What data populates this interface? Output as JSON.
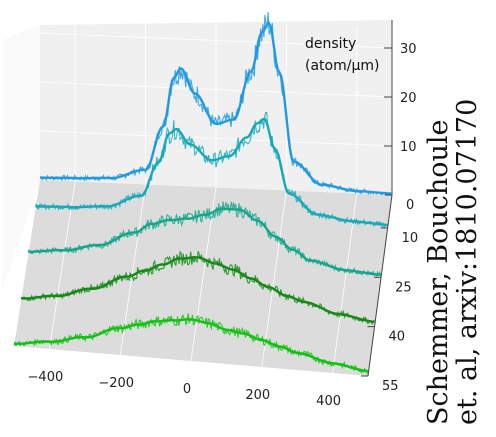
{
  "chart_data": {
    "type": "line",
    "title": "",
    "zlabel_line1": "density",
    "zlabel_line2": "(atom/μm)",
    "x_ticks": [
      -400,
      -200,
      0,
      200,
      400
    ],
    "time_ticks": [
      0,
      10,
      25,
      40,
      55
    ],
    "density_ticks": [
      10,
      20,
      30
    ],
    "x_range": [
      -500,
      500
    ],
    "density_range": [
      0,
      35
    ],
    "series": [
      {
        "t": 0,
        "color": "#1f9ae0",
        "x": [
          -500,
          -400,
          -300,
          -200,
          -150,
          -120,
          -100,
          -60,
          0,
          50,
          100,
          130,
          150,
          180,
          220,
          300,
          400,
          500
        ],
        "y": [
          0.5,
          0.7,
          1,
          3,
          12,
          22,
          24,
          19,
          13,
          14,
          24,
          32,
          34,
          24,
          6,
          1.5,
          0.5,
          0.3
        ]
      },
      {
        "t": 10,
        "color": "#16a9b8",
        "x": [
          -500,
          -400,
          -300,
          -200,
          -150,
          -120,
          -100,
          -60,
          0,
          50,
          100,
          130,
          150,
          180,
          220,
          300,
          400,
          500
        ],
        "y": [
          0.8,
          1,
          1.5,
          4,
          11,
          17,
          18,
          15,
          12,
          13,
          17,
          20,
          21,
          15,
          6,
          2,
          1,
          0.6
        ]
      },
      {
        "t": 25,
        "color": "#13a78a",
        "x": [
          -500,
          -400,
          -300,
          -200,
          -150,
          -100,
          -50,
          0,
          50,
          100,
          150,
          200,
          250,
          300,
          400,
          500
        ],
        "y": [
          0.8,
          1.5,
          3,
          6,
          8,
          9,
          9.5,
          10.5,
          12,
          12,
          10,
          7,
          4.5,
          2.5,
          1,
          0.5
        ]
      },
      {
        "t": 40,
        "color": "#138a16",
        "x": [
          -500,
          -400,
          -300,
          -200,
          -150,
          -100,
          -50,
          0,
          50,
          100,
          150,
          200,
          250,
          300,
          400,
          500
        ],
        "y": [
          0.5,
          1.5,
          3.5,
          6.5,
          8,
          9.5,
          11,
          11.5,
          10.5,
          9.5,
          8,
          6.5,
          5,
          4,
          2,
          1
        ]
      },
      {
        "t": 55,
        "color": "#10c210",
        "x": [
          -500,
          -400,
          -300,
          -200,
          -150,
          -100,
          -50,
          0,
          50,
          100,
          150,
          200,
          250,
          300,
          400,
          500
        ],
        "y": [
          0.5,
          1.5,
          3,
          5.5,
          6.5,
          7.5,
          8,
          8.5,
          8,
          7,
          6.5,
          5.5,
          4.5,
          3.5,
          2,
          1
        ]
      }
    ],
    "grid": true,
    "legend": "none"
  },
  "credit": {
    "line1": "Schemmer, Bouchoule",
    "line2": "et. al, arxiv:1810.07170"
  }
}
